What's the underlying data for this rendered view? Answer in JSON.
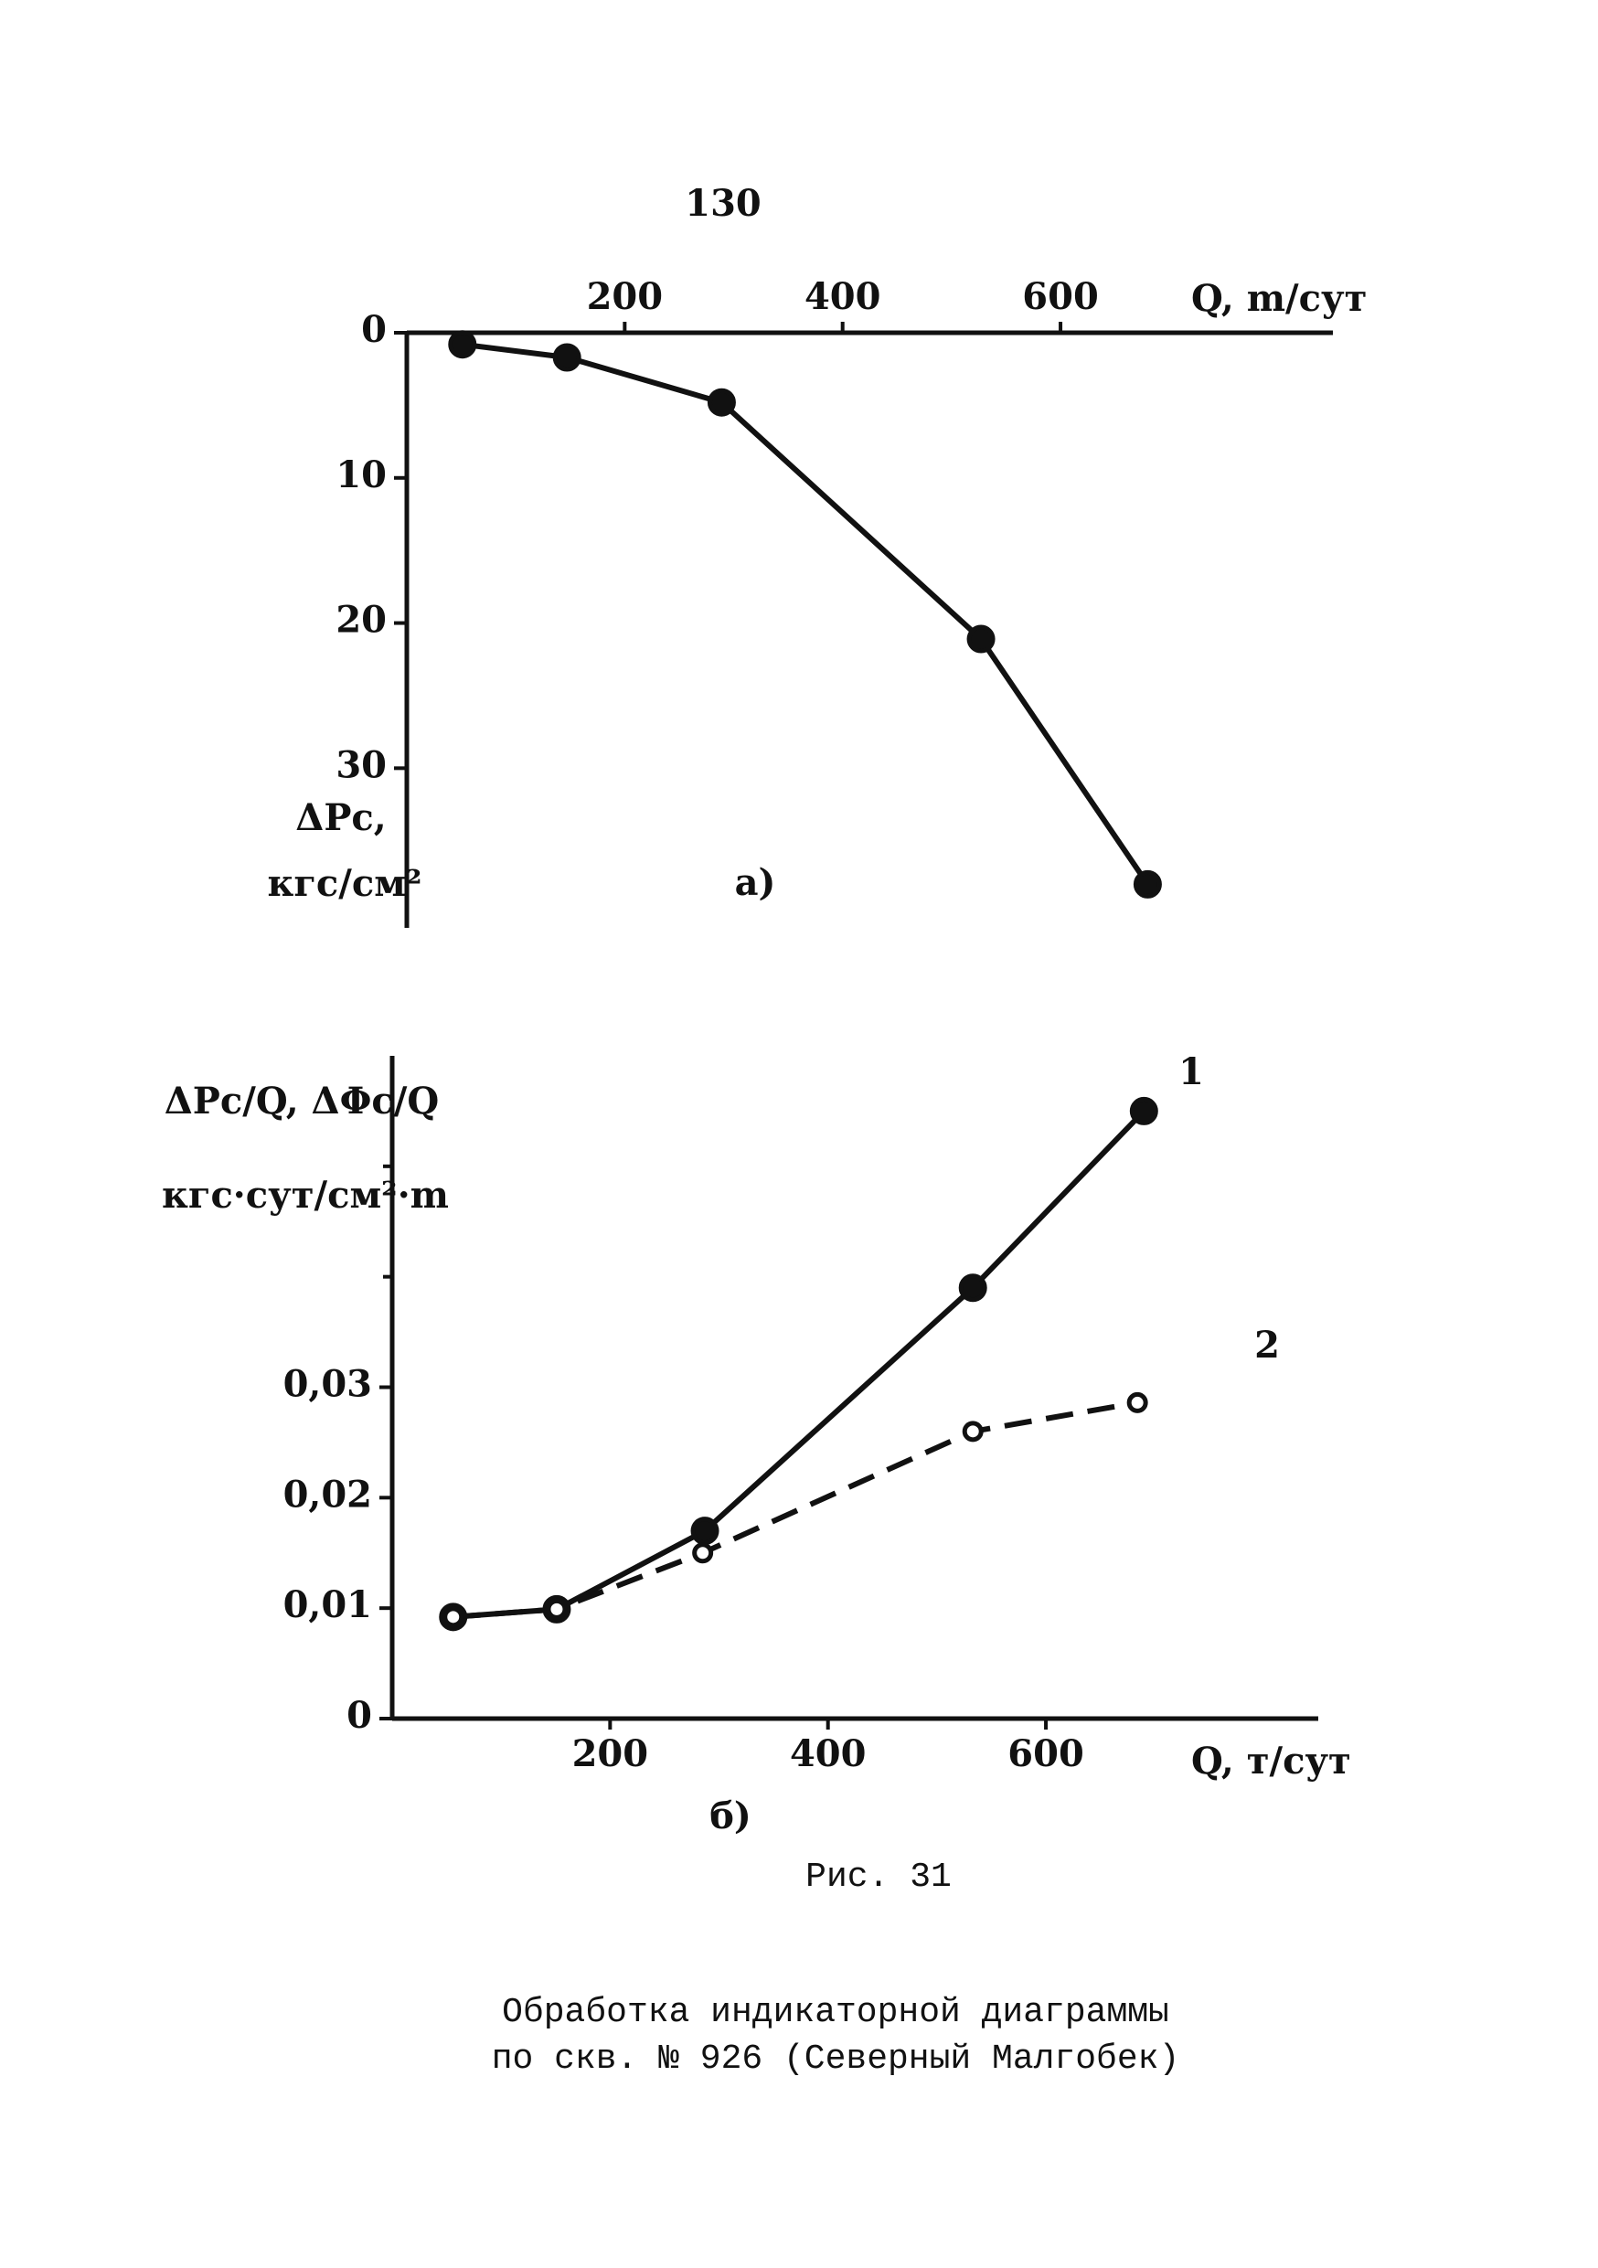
{
  "page_number": "130",
  "chart_data": [
    {
      "type": "line",
      "label": "а)",
      "x_label": "Q, m/сут",
      "y_label": "ΔPc,",
      "y_unit": "кгс/см²",
      "x_axis_position": "top",
      "y_inverted": true,
      "x": [
        51,
        147,
        289,
        527,
        680
      ],
      "values": [
        0.8,
        1.7,
        4.8,
        21.1,
        38
      ],
      "marker": "filled",
      "line_style": "solid",
      "color": "#111111",
      "xlim": [
        0,
        850
      ],
      "ylim": [
        0,
        41
      ],
      "xticks": [
        200,
        400,
        600
      ],
      "yticks": [
        0,
        10,
        20,
        30
      ]
    },
    {
      "type": "line",
      "label": "б)",
      "x_label": "Q, т/сут",
      "y_label": "ΔPc/Q, ΔΦc/Q",
      "y_unit": "кгс·сут/см²·m",
      "x_axis_position": "bottom",
      "y_inverted": false,
      "series": [
        {
          "name": "1",
          "marker": "filled",
          "line_style": "solid",
          "color": "#111111",
          "x": [
            56,
            151,
            287,
            533,
            690
          ],
          "values": [
            0.0092,
            0.0099,
            0.017,
            0.039,
            0.055
          ]
        },
        {
          "name": "2",
          "marker": "open",
          "line_style": "dashed",
          "color": "#111111",
          "x": [
            56,
            151,
            285,
            533,
            684
          ],
          "values": [
            0.0092,
            0.0099,
            0.015,
            0.026,
            0.0286
          ]
        }
      ],
      "xlim": [
        0,
        850
      ],
      "ylim": [
        0,
        0.06
      ],
      "xticks": [
        200,
        400,
        600
      ],
      "yticks": [
        0,
        {
          "value": 0.01,
          "label": "0,01"
        },
        {
          "value": 0.02,
          "label": "0,02"
        },
        {
          "value": 0.03,
          "label": "0,03"
        }
      ],
      "minor_yticks": [
        0.04,
        0.05
      ]
    }
  ],
  "figure_label": "Рис. 31",
  "caption": [
    "Обработка индикаторной диаграммы",
    "по скв. № 926 (Северный Малгобек)"
  ]
}
